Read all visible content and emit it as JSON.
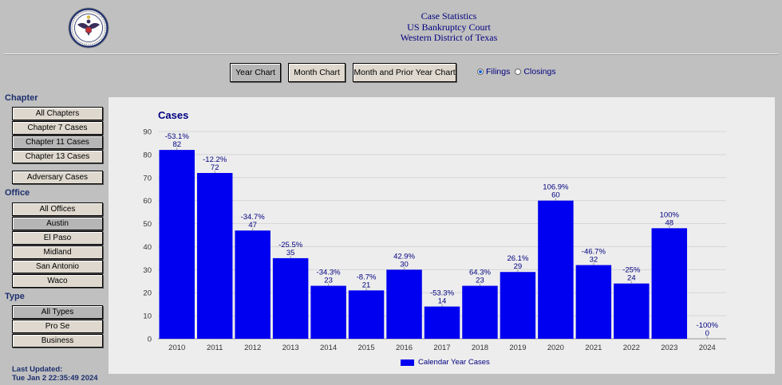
{
  "header": {
    "line1": "Case Statistics",
    "line2": "US Bankruptcy Court",
    "line3": "Western District of Texas"
  },
  "seal": {
    "icon": "court-seal-logo",
    "ring_text": "UNITED STATES BANKRUPTCY COURT · WESTERN DISTRICT OF TEXAS"
  },
  "toolbar": {
    "buttons": [
      {
        "label": "Year Chart",
        "active": true
      },
      {
        "label": "Month Chart",
        "active": false
      },
      {
        "label": "Month and Prior Year Chart",
        "active": false
      }
    ],
    "radios": [
      {
        "label": "Filings",
        "checked": true
      },
      {
        "label": "Closings",
        "checked": false
      }
    ]
  },
  "sidebar": {
    "chapter_heading": "Chapter",
    "chapters": [
      {
        "label": "All Chapters",
        "active": false
      },
      {
        "label": "Chapter 7 Cases",
        "active": false
      },
      {
        "label": "Chapter 11 Cases",
        "active": true
      },
      {
        "label": "Chapter 13 Cases",
        "active": false
      }
    ],
    "adversary": "Adversary Cases",
    "office_heading": "Office",
    "offices": [
      {
        "label": "All Offices",
        "active": false
      },
      {
        "label": "Austin",
        "active": true
      },
      {
        "label": "El Paso",
        "active": false
      },
      {
        "label": "Midland",
        "active": false
      },
      {
        "label": "San Antonio",
        "active": false
      },
      {
        "label": "Waco",
        "active": false
      }
    ],
    "type_heading": "Type",
    "types": [
      {
        "label": "All Types",
        "active": true
      },
      {
        "label": "Pro Se",
        "active": false
      },
      {
        "label": "Business",
        "active": false
      }
    ]
  },
  "last_updated": {
    "label": "Last Updated:",
    "value": "Tue Jan 2 22:35:49 2024"
  },
  "colors": {
    "bar": "#0000f0",
    "accent_text": "#000080",
    "background": "#c0c0c0",
    "panel": "#ededed"
  },
  "chart_data": {
    "type": "bar",
    "title": "Cases",
    "xlabel": "",
    "ylabel": "",
    "ylim": [
      0,
      90
    ],
    "yticks": [
      0,
      10,
      20,
      30,
      40,
      50,
      60,
      70,
      80,
      90
    ],
    "categories": [
      "2010",
      "2011",
      "2012",
      "2013",
      "2014",
      "2015",
      "2016",
      "2017",
      "2018",
      "2019",
      "2020",
      "2021",
      "2022",
      "2023",
      "2024"
    ],
    "series": [
      {
        "name": "Calendar Year Cases",
        "values": [
          82,
          72,
          47,
          35,
          23,
          21,
          30,
          14,
          23,
          29,
          60,
          32,
          24,
          48,
          0
        ],
        "pct_labels": [
          "-53.1%",
          "-12.2%",
          "-34.7%",
          "-25.5%",
          "-34.3%",
          "-8.7%",
          "42.9%",
          "-53.3%",
          "64.3%",
          "26.1%",
          "106.9%",
          "-46.7%",
          "-25%",
          "100%",
          "-100%"
        ]
      }
    ],
    "grid": true,
    "legend": "bottom-center"
  }
}
